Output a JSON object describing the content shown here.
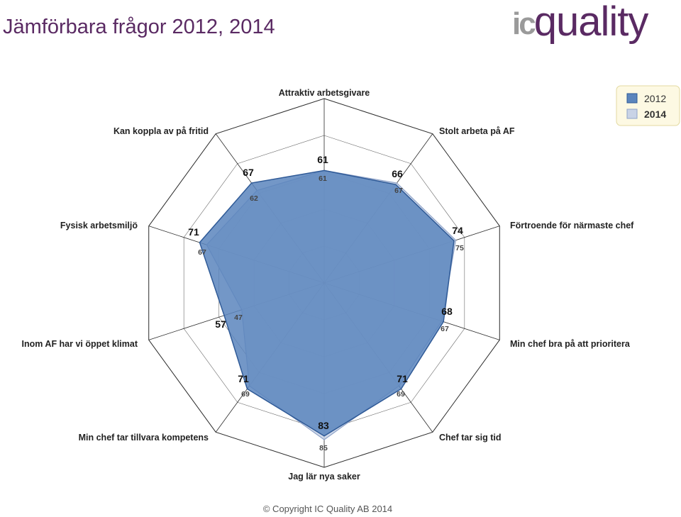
{
  "header": {
    "title": "Jämförbara frågor 2012, 2014",
    "logo_text": "icquality"
  },
  "footer": {
    "copyright": "© Copyright IC Quality AB 2014"
  },
  "colors": {
    "title": "#5a2a63",
    "series_2012_fill": "#5b85bd",
    "series_2014_fill": "#c9d3e6",
    "grid": "#2b2b2b",
    "legend_bg": "#fdf9e3",
    "legend_border": "#e3d9a0"
  },
  "chart_data": {
    "type": "radar",
    "title": "",
    "categories": [
      "Attraktiv arbetsgivare",
      "Stolt arbeta på AF",
      "Förtroende för närmaste chef",
      "Min chef bra på att prioritera",
      "Chef tar sig tid",
      "Jag lär nya saker",
      "Min chef tar tillvara kompetens",
      "Inom AF har vi öppet klimat",
      "Fysisk arbetsmiljö",
      "Kan koppla av på fritid"
    ],
    "series": [
      {
        "name": "2012",
        "values": [
          61,
          66,
          74,
          68,
          71,
          83,
          71,
          57,
          71,
          67
        ],
        "color": "#5b85bd"
      },
      {
        "name": "2014",
        "values": [
          61,
          67,
          75,
          67,
          69,
          85,
          69,
          47,
          67,
          62
        ],
        "color": "#c9d3e6"
      }
    ],
    "rlim": [
      0,
      100
    ],
    "rings": 5,
    "grid": true,
    "legend_position": "top-right",
    "value_labels_2012": [
      "61",
      "66",
      "74",
      "68",
      "71",
      "83",
      "71",
      "57",
      "71",
      "67"
    ],
    "value_labels_2014": [
      "61",
      "67",
      "75",
      "67",
      "69",
      "85",
      "69",
      "47",
      "67",
      "62"
    ]
  }
}
